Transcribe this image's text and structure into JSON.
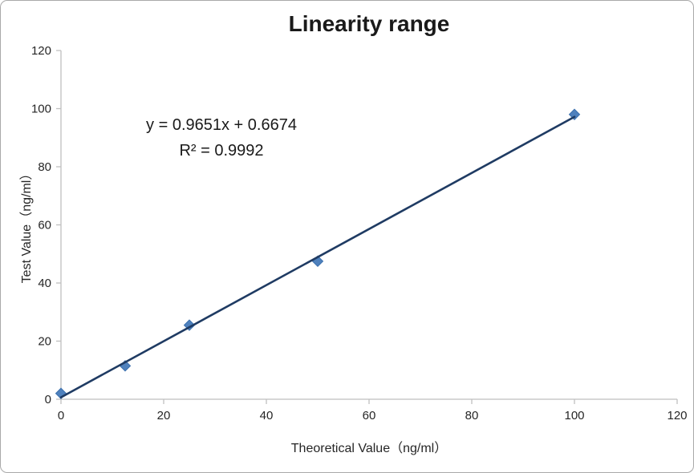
{
  "chart_data": {
    "type": "scatter",
    "title": "Linearity range",
    "xlabel": "Theoretical Value（ng/ml）",
    "ylabel": "Test Value（ng/ml）",
    "points": [
      {
        "x": 0,
        "y": 2
      },
      {
        "x": 12.5,
        "y": 11.5
      },
      {
        "x": 25,
        "y": 25.5
      },
      {
        "x": 50,
        "y": 47.5
      },
      {
        "x": 100,
        "y": 98
      }
    ],
    "trendline": {
      "slope": 0.9651,
      "intercept": 0.6674,
      "r_squared": 0.9992,
      "x_start": 0,
      "x_end": 100,
      "equation_label": "y = 0.9651x + 0.6674",
      "r2_label": "R² = 0.9992"
    },
    "xlim": [
      0,
      120
    ],
    "ylim": [
      0,
      120
    ],
    "xticks": [
      0,
      20,
      40,
      60,
      80,
      100,
      120
    ],
    "yticks": [
      0,
      20,
      40,
      60,
      80,
      100,
      120
    ],
    "grid": false,
    "legend": "none",
    "colors": {
      "marker": "#4f81bd",
      "marker_edge": "#3a6fad",
      "trendline": "#1f3b63",
      "axis": "#bfbfbf",
      "tick_text": "#262626"
    }
  }
}
